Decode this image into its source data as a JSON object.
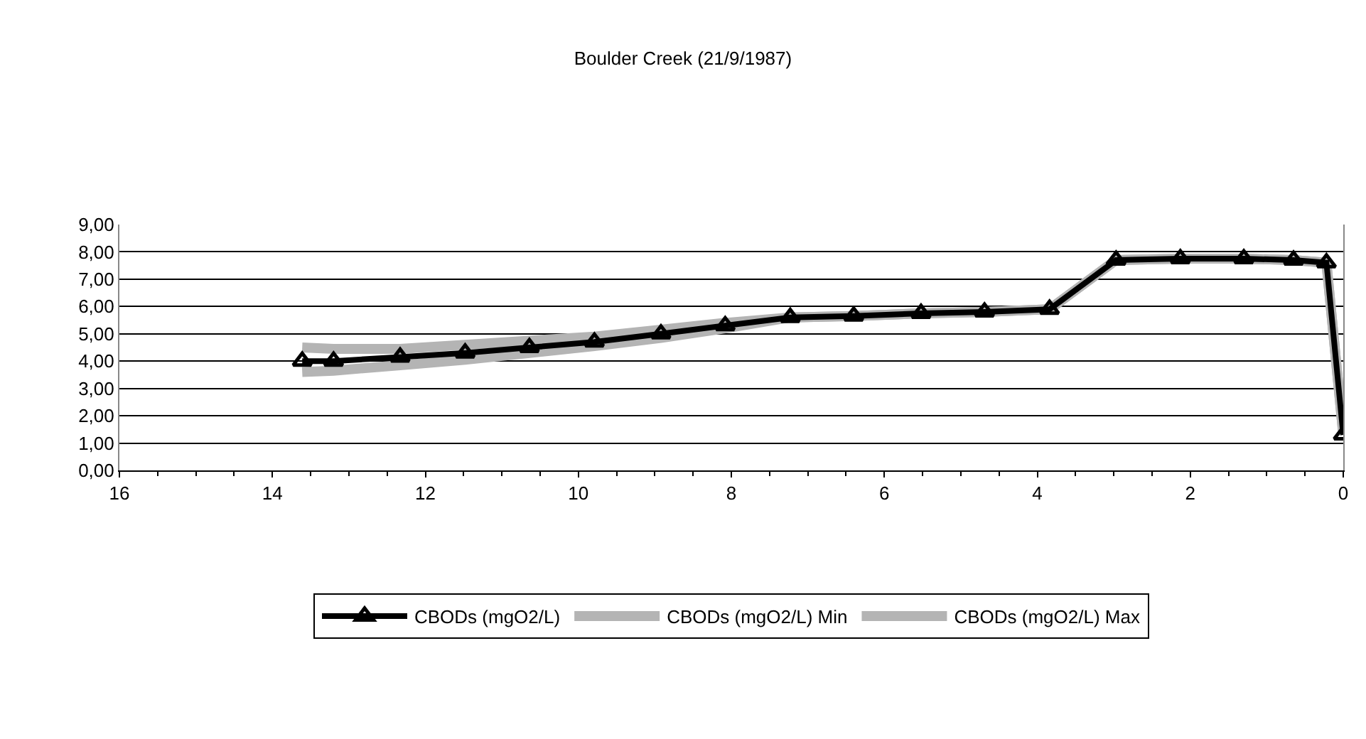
{
  "chart_data": {
    "type": "line",
    "title": "Boulder Creek (21/9/1987)",
    "x": [
      13.61,
      13.2,
      12.33,
      11.48,
      10.64,
      9.79,
      8.92,
      8.08,
      7.23,
      6.4,
      5.52,
      4.69,
      3.84,
      2.97,
      2.13,
      1.3,
      0.65,
      0.22,
      0
    ],
    "series": [
      {
        "name": "CBODs (mgO2/L) Min",
        "color": "#b4b4b4",
        "values": [
          3.6,
          3.65,
          3.85,
          4.05,
          4.3,
          4.55,
          4.85,
          5.2,
          5.6,
          5.65,
          5.75,
          5.8,
          5.9,
          7.7,
          7.75,
          7.75,
          7.7,
          7.6,
          1.3
        ]
      },
      {
        "name": "CBODs (mgO2/L) Max",
        "color": "#b4b4b4",
        "values": [
          4.5,
          4.45,
          4.45,
          4.6,
          4.75,
          4.9,
          5.15,
          5.4,
          5.6,
          5.65,
          5.75,
          5.8,
          5.9,
          7.7,
          7.75,
          7.75,
          7.7,
          7.6,
          1.3
        ]
      },
      {
        "name": "CBODs (mgO2/L)",
        "color": "#000000",
        "marker": "triangle",
        "values": [
          4.0,
          4.0,
          4.15,
          4.3,
          4.5,
          4.7,
          5.0,
          5.3,
          5.6,
          5.65,
          5.75,
          5.8,
          5.9,
          7.7,
          7.75,
          7.75,
          7.7,
          7.6,
          1.3
        ]
      }
    ],
    "xlim": [
      16,
      0
    ],
    "xticks": [
      16,
      14,
      12,
      10,
      8,
      6,
      4,
      2,
      0
    ],
    "ylim": [
      0,
      9
    ],
    "yticks": [
      {
        "value": 0,
        "label": "0,00"
      },
      {
        "value": 1,
        "label": "1,00"
      },
      {
        "value": 2,
        "label": "2,00"
      },
      {
        "value": 3,
        "label": "3,00"
      },
      {
        "value": 4,
        "label": "4,00"
      },
      {
        "value": 5,
        "label": "5,00"
      },
      {
        "value": 6,
        "label": "6,00"
      },
      {
        "value": 7,
        "label": "7,00"
      },
      {
        "value": 8,
        "label": "8,00"
      },
      {
        "value": 9,
        "label": "9,00"
      }
    ],
    "grid": "y",
    "legend": "bottom"
  }
}
